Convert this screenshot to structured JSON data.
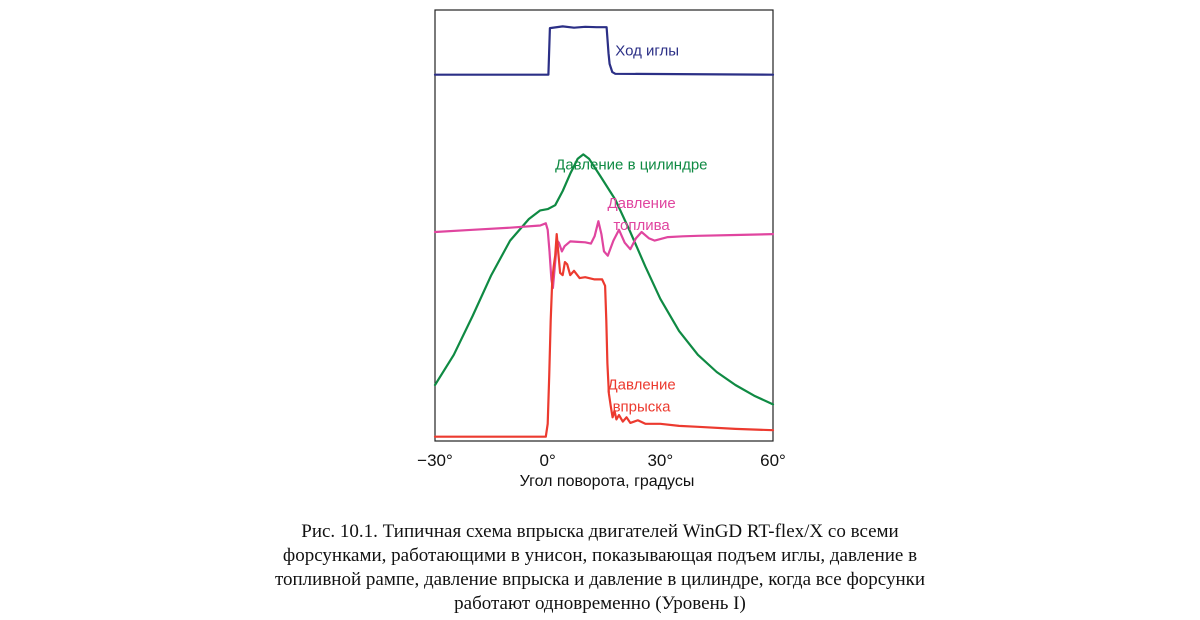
{
  "chart_data": {
    "type": "line",
    "title": "",
    "xlabel": "Угол поворота, градусы",
    "ylabel": "",
    "xlim": [
      -30,
      60
    ],
    "ylim": [
      0,
      100
    ],
    "x_ticks": [
      "−30°",
      "0°",
      "30°",
      "60°"
    ],
    "x_tick_values": [
      -30,
      0,
      30,
      60
    ],
    "grid": false,
    "series": [
      {
        "name": "Ход иглы",
        "label_lines": [
          "Ход иглы"
        ],
        "color": "#2b2f86",
        "points": [
          [
            -30,
            85
          ],
          [
            0.2,
            85
          ],
          [
            0.6,
            95.8
          ],
          [
            4,
            96.2
          ],
          [
            7,
            95.9
          ],
          [
            10,
            96.1
          ],
          [
            13,
            96
          ],
          [
            15.7,
            96
          ],
          [
            16.2,
            90
          ],
          [
            16.5,
            87.5
          ],
          [
            17.2,
            85.6
          ],
          [
            18,
            85.2
          ],
          [
            60,
            85
          ]
        ]
      },
      {
        "name": "Давление в цилиндре",
        "label_lines": [
          "Давление в цилиндре"
        ],
        "color": "#0f8a43",
        "points": [
          [
            -30,
            13
          ],
          [
            -25,
            20
          ],
          [
            -20,
            29
          ],
          [
            -15,
            38.5
          ],
          [
            -10,
            46.5
          ],
          [
            -5,
            51.5
          ],
          [
            -2,
            53.5
          ],
          [
            0,
            53.8
          ],
          [
            2,
            54.7
          ],
          [
            4,
            58
          ],
          [
            6,
            62
          ],
          [
            8,
            65.5
          ],
          [
            9.5,
            66.5
          ],
          [
            11,
            65.5
          ],
          [
            14,
            61.5
          ],
          [
            18,
            56
          ],
          [
            22,
            48.5
          ],
          [
            26,
            40.5
          ],
          [
            30,
            33
          ],
          [
            35,
            25.5
          ],
          [
            40,
            20
          ],
          [
            45,
            16
          ],
          [
            50,
            13
          ],
          [
            55,
            10.5
          ],
          [
            60,
            8.5
          ]
        ]
      },
      {
        "name": "Давление топлива",
        "label_lines": [
          "Давление",
          "топлива"
        ],
        "color": "#e0459f",
        "points": [
          [
            -30,
            48.5
          ],
          [
            -20,
            49
          ],
          [
            -10,
            49.5
          ],
          [
            -2,
            50
          ],
          [
            -0.5,
            50.5
          ],
          [
            0,
            49
          ],
          [
            0.5,
            44
          ],
          [
            1,
            37.5
          ],
          [
            1.4,
            35.5
          ],
          [
            2,
            41.5
          ],
          [
            2.5,
            46.5
          ],
          [
            3,
            46
          ],
          [
            3.8,
            44
          ],
          [
            4.5,
            45.2
          ],
          [
            6,
            46.3
          ],
          [
            8,
            46.2
          ],
          [
            10,
            46.1
          ],
          [
            11.5,
            45.8
          ],
          [
            12.5,
            47.5
          ],
          [
            13.5,
            51
          ],
          [
            14.3,
            48
          ],
          [
            15,
            44
          ],
          [
            16,
            43
          ],
          [
            17.5,
            46.5
          ],
          [
            19,
            49
          ],
          [
            20.5,
            46
          ],
          [
            22,
            44.5
          ],
          [
            23.5,
            47
          ],
          [
            25,
            48.5
          ],
          [
            27,
            47
          ],
          [
            28.5,
            46.5
          ],
          [
            32,
            47.3
          ],
          [
            36,
            47.5
          ],
          [
            40,
            47.6
          ],
          [
            50,
            47.8
          ],
          [
            60,
            48
          ]
        ]
      },
      {
        "name": "Давление впрыска",
        "label_lines": [
          "Давление",
          "впрыска"
        ],
        "color": "#ec3a2f",
        "points": [
          [
            -30,
            1
          ],
          [
            -5,
            1
          ],
          [
            -0.5,
            1
          ],
          [
            0,
            4
          ],
          [
            0.4,
            15
          ],
          [
            0.8,
            28
          ],
          [
            1.2,
            37
          ],
          [
            1.6,
            40.5
          ],
          [
            2,
            43
          ],
          [
            2.4,
            48
          ],
          [
            2.8,
            44
          ],
          [
            3.3,
            39
          ],
          [
            4,
            38.5
          ],
          [
            4.6,
            41.5
          ],
          [
            5.2,
            41
          ],
          [
            6,
            38.5
          ],
          [
            7,
            39.5
          ],
          [
            8.5,
            37.8
          ],
          [
            10,
            38
          ],
          [
            12.5,
            37.5
          ],
          [
            14.5,
            37.5
          ],
          [
            15.3,
            36
          ],
          [
            15.6,
            28
          ],
          [
            15.9,
            18
          ],
          [
            16.3,
            11
          ],
          [
            16.8,
            8
          ],
          [
            17.3,
            5.5
          ],
          [
            17.8,
            7
          ],
          [
            18.3,
            5
          ],
          [
            19,
            6
          ],
          [
            20,
            4.5
          ],
          [
            21,
            5.5
          ],
          [
            22,
            4.2
          ],
          [
            24,
            4.8
          ],
          [
            26,
            4
          ],
          [
            30,
            4
          ],
          [
            35,
            3.5
          ],
          [
            40,
            3.3
          ],
          [
            50,
            2.8
          ],
          [
            60,
            2.5
          ]
        ]
      }
    ]
  },
  "caption": {
    "lines": [
      "Рис. 10.1. Типичная схема впрыска двигателей WinGD RT-flex/X со всеми",
      "форсунками, работающими в унисон, показывающая подъем иглы, давление в",
      "топливной рампе, давление впрыска и давление в цилиндре, когда все форсунки",
      "работают одновременно (Уровень I)"
    ]
  }
}
